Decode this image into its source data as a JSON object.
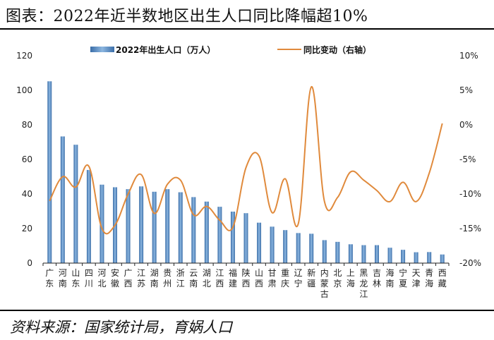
{
  "header": {
    "title": "图表：2022年近半数地区出生人口同比降幅超10%"
  },
  "footer": {
    "source": "资料来源：国家统计局，育娲人口"
  },
  "chart_data": {
    "type": "bar+line",
    "categories": [
      "广东",
      "河南",
      "山东",
      "四川",
      "河北",
      "安徽",
      "广西",
      "江苏",
      "湖南",
      "贵州",
      "浙江",
      "云南",
      "湖北",
      "江西",
      "福建",
      "陕西",
      "山西",
      "甘肃",
      "重庆",
      "辽宁",
      "新疆",
      "内蒙古",
      "北京",
      "上海",
      "黑龙江",
      "吉林",
      "海南",
      "宁夏",
      "天津",
      "青海",
      "西藏"
    ],
    "series": [
      {
        "name": "2022年出生人口（万人）",
        "axis": "left",
        "type": "bar",
        "values": [
          105.2,
          73.3,
          68.5,
          53.9,
          45.4,
          43.9,
          42.8,
          44.4,
          41.3,
          42.8,
          41.0,
          38.2,
          35.6,
          32.6,
          29.8,
          28.9,
          23.4,
          21.1,
          19.1,
          17.4,
          17.0,
          13.3,
          12.3,
          10.9,
          10.4,
          10.4,
          8.9,
          7.7,
          6.3,
          6.4,
          5.0
        ]
      },
      {
        "name": "同比变动（右轴）",
        "axis": "right",
        "type": "line",
        "values": [
          -11.0,
          -7.5,
          -9.0,
          -6.0,
          -15.0,
          -14.5,
          -10.0,
          -7.2,
          -12.8,
          -8.6,
          -8.0,
          -13.0,
          -11.8,
          -13.8,
          -14.8,
          -6.2,
          -4.5,
          -12.7,
          -7.8,
          -14.3,
          5.5,
          -11.1,
          -10.5,
          -6.8,
          -8.0,
          -9.5,
          -11.1,
          -8.3,
          -11.1,
          -7.0,
          0.2
        ]
      }
    ],
    "y_left": {
      "ticks": [
        0,
        20,
        40,
        60,
        80,
        100,
        120
      ],
      "ylim": [
        0,
        120
      ]
    },
    "y_right": {
      "ticks": [
        "10%",
        "5%",
        "0%",
        "-5%",
        "-10%",
        "-15%",
        "-20%"
      ],
      "ylim": [
        -20,
        10
      ]
    },
    "colors": {
      "bar": "#6f9fd0",
      "bar_dark": "#3b6ea8",
      "line": "#e08a3c",
      "axis": "#222222"
    }
  }
}
